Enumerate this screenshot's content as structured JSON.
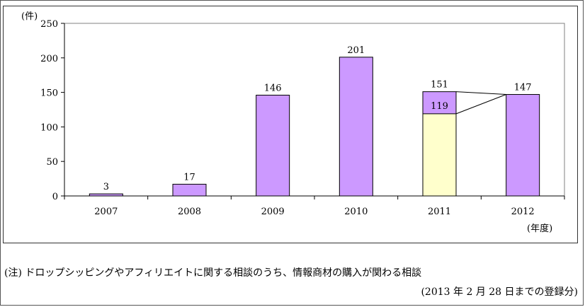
{
  "chart_data": {
    "type": "bar",
    "y_unit_label": "(件)",
    "x_unit_label": "(年度)",
    "ylim": [
      0,
      250
    ],
    "yticks": [
      0,
      50,
      100,
      150,
      200,
      250
    ],
    "grid": false,
    "categories": [
      "2007",
      "2008",
      "2009",
      "2010",
      "2011",
      "2012"
    ],
    "values": [
      3,
      17,
      146,
      201,
      151,
      147
    ],
    "sub_segment": {
      "category": "2011",
      "value": 119
    },
    "colors": {
      "bar": "#cc99ff",
      "sub_segment": "#ffffcc",
      "edge": "#000000"
    }
  },
  "notes": {
    "line1": "(注) ドロップシッピングやアフィリエイトに関する相談のうち、情報商材の購入が関わる相談",
    "line2": "(2013 年 2 月 28 日までの登録分)"
  }
}
